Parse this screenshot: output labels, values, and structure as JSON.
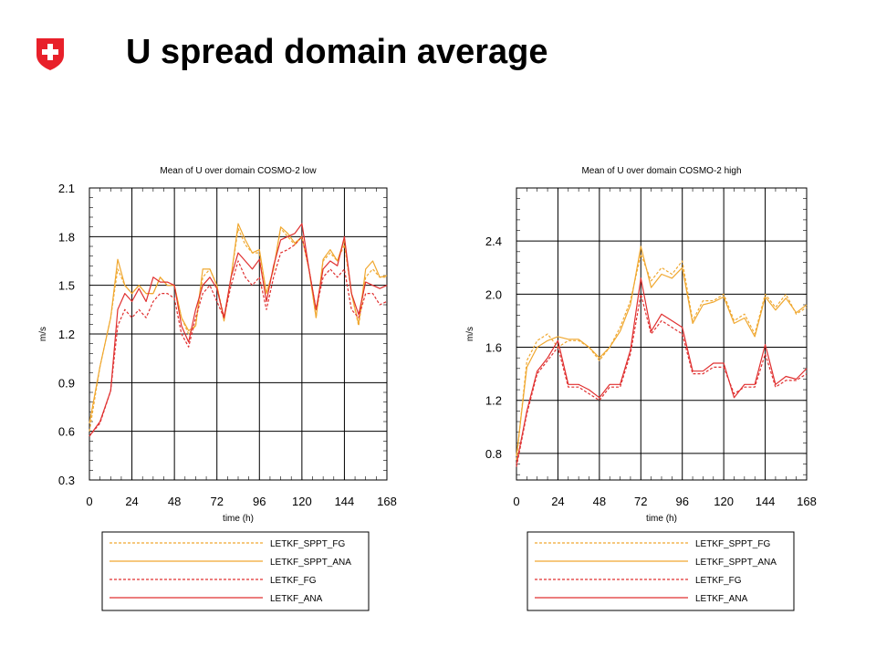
{
  "slide": {
    "title": "U spread domain average",
    "logo_icon": "swiss-cross-shield-icon"
  },
  "colors": {
    "spp_orange": "#f0a830",
    "letkf_red": "#e03030",
    "logo_red": "#e8202a",
    "grid": "#000000"
  },
  "chart_data": [
    {
      "type": "line",
      "title": "Mean of U over domain COSMO-2 low",
      "xlabel": "time (h)",
      "ylabel": "m/s",
      "xlim": [
        0,
        168
      ],
      "ylim": [
        0.3,
        2.1
      ],
      "xticks": [
        "0",
        "24",
        "48",
        "72",
        "96",
        "120",
        "144",
        "168"
      ],
      "yticks": [
        "0.3",
        "0.6",
        "0.9",
        "1.2",
        "1.5",
        "1.8",
        "2.1"
      ],
      "grid": true,
      "legend_placement": "below",
      "series": [
        {
          "name": "LETKF_SPPT_FG",
          "color": "#f0a830",
          "style": "dashed",
          "x": [
            0,
            6,
            12,
            16,
            20,
            24,
            28,
            32,
            36,
            40,
            44,
            48,
            52,
            56,
            60,
            64,
            68,
            72,
            76,
            80,
            84,
            88,
            92,
            96,
            100,
            104,
            108,
            112,
            116,
            120,
            124,
            128,
            132,
            136,
            140,
            144,
            148,
            152,
            156,
            160,
            164,
            168
          ],
          "y": [
            0.6,
            1.0,
            1.3,
            1.6,
            1.5,
            1.45,
            1.5,
            1.45,
            1.45,
            1.55,
            1.5,
            1.5,
            1.3,
            1.2,
            1.25,
            1.55,
            1.6,
            1.5,
            1.3,
            1.55,
            1.85,
            1.75,
            1.7,
            1.7,
            1.45,
            1.6,
            1.85,
            1.8,
            1.75,
            1.8,
            1.6,
            1.3,
            1.65,
            1.7,
            1.65,
            1.75,
            1.45,
            1.25,
            1.55,
            1.6,
            1.55,
            1.55
          ]
        },
        {
          "name": "LETKF_SPPT_ANA",
          "color": "#f0a830",
          "style": "solid",
          "x": [
            0,
            6,
            12,
            16,
            20,
            24,
            28,
            32,
            36,
            40,
            44,
            48,
            52,
            56,
            60,
            64,
            68,
            72,
            76,
            80,
            84,
            88,
            92,
            96,
            100,
            104,
            108,
            112,
            116,
            120,
            124,
            128,
            132,
            136,
            140,
            144,
            148,
            152,
            156,
            160,
            164,
            168
          ],
          "y": [
            0.65,
            1.0,
            1.3,
            1.66,
            1.5,
            1.45,
            1.5,
            1.45,
            1.45,
            1.55,
            1.5,
            1.5,
            1.3,
            1.22,
            1.25,
            1.6,
            1.6,
            1.5,
            1.28,
            1.55,
            1.88,
            1.78,
            1.7,
            1.72,
            1.45,
            1.6,
            1.86,
            1.82,
            1.76,
            1.8,
            1.6,
            1.3,
            1.66,
            1.72,
            1.65,
            1.78,
            1.45,
            1.26,
            1.6,
            1.65,
            1.55,
            1.56
          ]
        },
        {
          "name": "LETKF_FG",
          "color": "#e03030",
          "style": "dashed",
          "x": [
            0,
            6,
            12,
            16,
            20,
            24,
            28,
            32,
            36,
            40,
            44,
            48,
            52,
            56,
            60,
            64,
            68,
            72,
            76,
            80,
            84,
            88,
            92,
            96,
            100,
            104,
            108,
            112,
            116,
            120,
            124,
            128,
            132,
            136,
            140,
            144,
            148,
            152,
            156,
            160,
            164,
            168
          ],
          "y": [
            0.57,
            0.65,
            0.85,
            1.25,
            1.35,
            1.3,
            1.35,
            1.3,
            1.4,
            1.45,
            1.45,
            1.42,
            1.2,
            1.12,
            1.3,
            1.45,
            1.5,
            1.4,
            1.3,
            1.5,
            1.65,
            1.55,
            1.5,
            1.55,
            1.35,
            1.55,
            1.7,
            1.72,
            1.75,
            1.8,
            1.6,
            1.35,
            1.55,
            1.6,
            1.55,
            1.6,
            1.35,
            1.3,
            1.45,
            1.45,
            1.38,
            1.4
          ]
        },
        {
          "name": "LETKF_ANA",
          "color": "#e03030",
          "style": "solid",
          "x": [
            0,
            6,
            12,
            16,
            20,
            24,
            28,
            32,
            36,
            40,
            44,
            48,
            52,
            56,
            60,
            64,
            68,
            72,
            76,
            80,
            84,
            88,
            92,
            96,
            100,
            104,
            108,
            112,
            116,
            120,
            124,
            128,
            132,
            136,
            140,
            144,
            148,
            152,
            156,
            160,
            164,
            168
          ],
          "y": [
            0.57,
            0.66,
            0.85,
            1.35,
            1.45,
            1.4,
            1.48,
            1.4,
            1.55,
            1.52,
            1.52,
            1.5,
            1.25,
            1.15,
            1.35,
            1.5,
            1.55,
            1.48,
            1.3,
            1.55,
            1.7,
            1.65,
            1.6,
            1.66,
            1.4,
            1.62,
            1.78,
            1.8,
            1.82,
            1.88,
            1.6,
            1.35,
            1.6,
            1.65,
            1.62,
            1.8,
            1.45,
            1.32,
            1.52,
            1.5,
            1.48,
            1.5
          ]
        }
      ]
    },
    {
      "type": "line",
      "title": "Mean of U over domain COSMO-2 high",
      "xlabel": "time (h)",
      "ylabel": "m/s",
      "xlim": [
        0,
        168
      ],
      "ylim": [
        0.6,
        2.8
      ],
      "xticks": [
        "0",
        "24",
        "48",
        "72",
        "96",
        "120",
        "144",
        "168"
      ],
      "yticks": [
        "0.8",
        "1.2",
        "1.6",
        "2.0",
        "2.4"
      ],
      "grid": true,
      "legend_placement": "below",
      "series": [
        {
          "name": "LETKF_SPPT_FG",
          "color": "#f0a830",
          "style": "dashed",
          "x": [
            0,
            6,
            12,
            18,
            24,
            30,
            36,
            42,
            48,
            54,
            60,
            66,
            72,
            78,
            84,
            90,
            96,
            102,
            108,
            114,
            120,
            126,
            132,
            138,
            144,
            150,
            156,
            162,
            168
          ],
          "y": [
            0.75,
            1.5,
            1.65,
            1.7,
            1.6,
            1.65,
            1.65,
            1.6,
            1.5,
            1.6,
            1.75,
            1.95,
            2.3,
            2.1,
            2.2,
            2.15,
            2.25,
            1.8,
            1.95,
            1.95,
            2.0,
            1.8,
            1.85,
            1.7,
            2.0,
            1.9,
            2.0,
            1.85,
            1.9
          ]
        },
        {
          "name": "LETKF_SPPT_ANA",
          "color": "#f0a830",
          "style": "solid",
          "x": [
            0,
            6,
            12,
            18,
            24,
            30,
            36,
            42,
            48,
            54,
            60,
            66,
            72,
            78,
            84,
            90,
            96,
            102,
            108,
            114,
            120,
            126,
            132,
            138,
            144,
            150,
            156,
            162,
            168
          ],
          "y": [
            0.78,
            1.45,
            1.6,
            1.65,
            1.68,
            1.66,
            1.66,
            1.6,
            1.52,
            1.6,
            1.72,
            1.92,
            2.36,
            2.05,
            2.15,
            2.12,
            2.2,
            1.78,
            1.92,
            1.94,
            1.98,
            1.78,
            1.82,
            1.68,
            1.98,
            1.88,
            1.97,
            1.86,
            1.92
          ]
        },
        {
          "name": "LETKF_FG",
          "color": "#e03030",
          "style": "dashed",
          "x": [
            0,
            6,
            12,
            18,
            24,
            30,
            36,
            42,
            48,
            54,
            60,
            66,
            72,
            78,
            84,
            90,
            96,
            102,
            108,
            114,
            120,
            126,
            132,
            138,
            144,
            150,
            156,
            162,
            168
          ],
          "y": [
            0.7,
            1.1,
            1.4,
            1.5,
            1.6,
            1.3,
            1.3,
            1.25,
            1.2,
            1.3,
            1.3,
            1.55,
            2.0,
            1.7,
            1.8,
            1.75,
            1.7,
            1.4,
            1.4,
            1.45,
            1.45,
            1.25,
            1.3,
            1.3,
            1.55,
            1.3,
            1.35,
            1.35,
            1.4
          ]
        },
        {
          "name": "LETKF_ANA",
          "color": "#e03030",
          "style": "solid",
          "x": [
            0,
            6,
            12,
            18,
            24,
            30,
            36,
            42,
            48,
            54,
            60,
            66,
            72,
            78,
            84,
            90,
            96,
            102,
            108,
            114,
            120,
            126,
            132,
            138,
            144,
            150,
            156,
            162,
            168
          ],
          "y": [
            0.72,
            1.12,
            1.42,
            1.52,
            1.65,
            1.32,
            1.32,
            1.28,
            1.22,
            1.32,
            1.32,
            1.58,
            2.12,
            1.72,
            1.85,
            1.8,
            1.75,
            1.42,
            1.42,
            1.48,
            1.48,
            1.22,
            1.32,
            1.32,
            1.62,
            1.32,
            1.38,
            1.36,
            1.44
          ]
        }
      ]
    }
  ]
}
